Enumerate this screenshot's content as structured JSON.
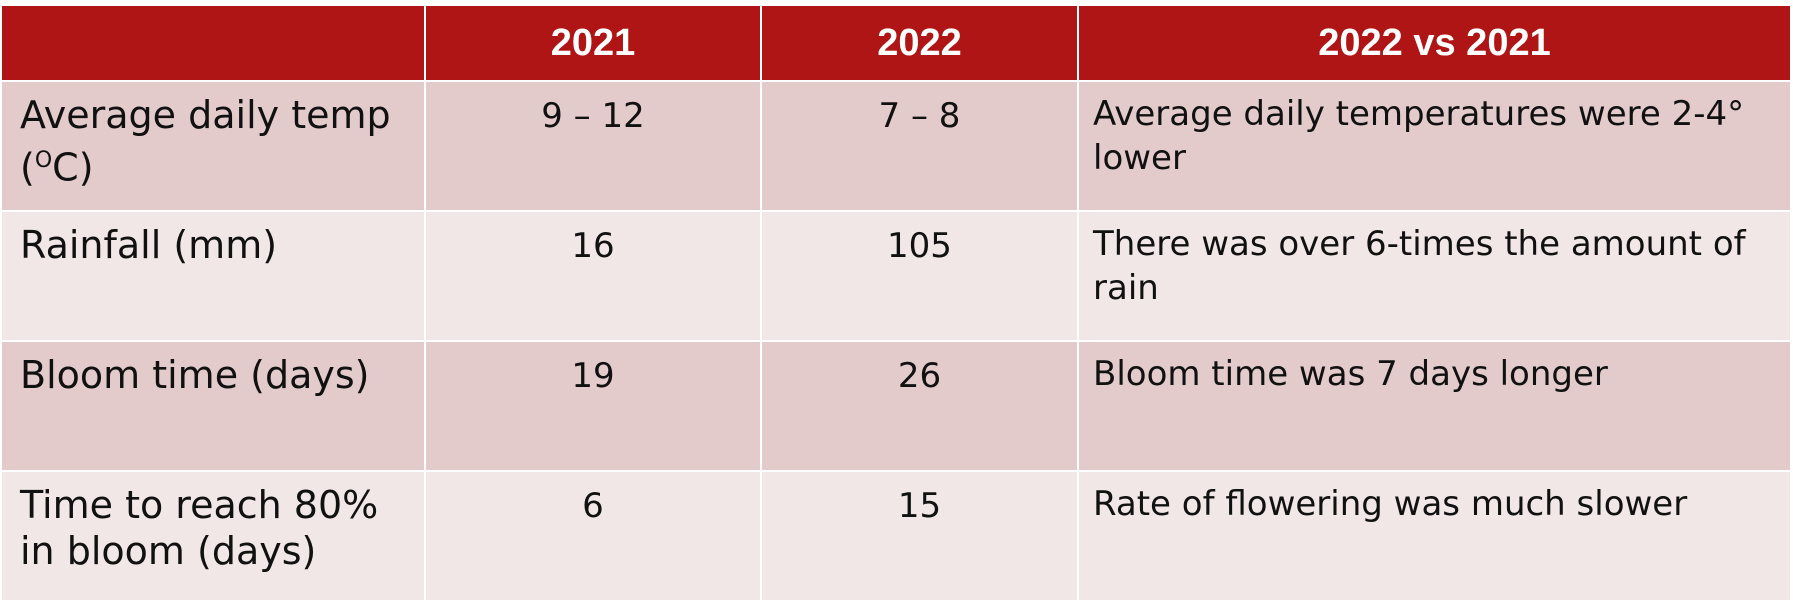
{
  "table": {
    "headers": [
      "",
      "2021",
      "2022",
      "2022 vs 2021"
    ],
    "rows": [
      {
        "label": "Average daily temp (OC)",
        "label_main": "Average daily temp (",
        "label_sup": "O",
        "label_end": "C)",
        "y2021": "9 – 12",
        "y2022": "7 – 8",
        "comparison": "Average daily temperatures were 2-4° lower"
      },
      {
        "label": "Rainfall (mm)",
        "y2021": "16",
        "y2022": "105",
        "comparison": "There was over 6-times the amount of rain"
      },
      {
        "label": "Bloom time (days)",
        "y2021": "19",
        "y2022": "26",
        "comparison": "Bloom time was 7 days longer"
      },
      {
        "label": "Time to reach 80% in bloom (days)",
        "y2021": "6",
        "y2022": "15",
        "comparison": "Rate of flowering was much slower"
      }
    ]
  },
  "colors": {
    "header_bg": "#b01515",
    "row_dark": "#e4cbcb",
    "row_light": "#f1e7e6"
  }
}
